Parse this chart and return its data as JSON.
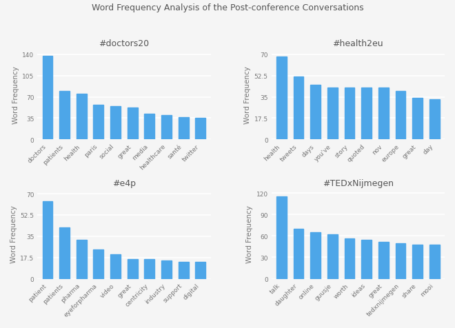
{
  "suptitle": "Word Frequency Analysis of the Post-conference Conversations",
  "suptitle_fontsize": 9,
  "subplots": [
    {
      "title": "#doctors20",
      "categories": [
        "doctors",
        "patients",
        "health",
        "paris",
        "social",
        "great",
        "media",
        "healthcare",
        "santé",
        "twitter"
      ],
      "values": [
        138,
        80,
        75,
        57,
        55,
        52,
        42,
        40,
        37,
        35
      ],
      "ylabel": "Word Frequency",
      "yticks": [
        0,
        35,
        70,
        105,
        140
      ],
      "ylim": [
        0,
        148
      ]
    },
    {
      "title": "#health2eu",
      "categories": [
        "health",
        "tweets",
        "days",
        "you've",
        "story",
        "quoted",
        "nov",
        "europe",
        "great",
        "day"
      ],
      "values": [
        68,
        52,
        45,
        43,
        43,
        43,
        43,
        40,
        34,
        33
      ],
      "ylabel": "Word Frequency",
      "yticks": [
        0,
        17.5,
        35,
        52.5,
        70
      ],
      "ylim": [
        0,
        74
      ]
    },
    {
      "title": "#e4p",
      "categories": [
        "patient",
        "patients",
        "pharma",
        "eyeforpharma",
        "video",
        "great",
        "centricity",
        "industry",
        "support",
        "digital"
      ],
      "values": [
        64,
        42,
        32,
        24,
        20,
        16,
        16,
        15,
        14,
        14
      ],
      "ylabel": "Word Frequency",
      "yticks": [
        0,
        17.5,
        35,
        52.5,
        70
      ],
      "ylim": [
        0,
        74
      ]
    },
    {
      "title": "#TEDxNijmegen",
      "categories": [
        "talk",
        "daughter",
        "online",
        "guusje",
        "worth",
        "ideas",
        "great",
        "tedxnijmegen",
        "share",
        "mooi"
      ],
      "values": [
        115,
        70,
        65,
        62,
        57,
        55,
        52,
        50,
        48,
        48
      ],
      "ylabel": "Word Frequency",
      "yticks": [
        0,
        30,
        60,
        90,
        120
      ],
      "ylim": [
        0,
        126
      ]
    }
  ],
  "bar_color_top": "#4da6e8",
  "bar_color_bottom": "#6ab8f0",
  "background_color": "#f5f5f5",
  "grid_color": "#ffffff",
  "title_fontsize": 9,
  "ylabel_fontsize": 7.5,
  "tick_fontsize": 6.5,
  "bar_width": 0.6
}
